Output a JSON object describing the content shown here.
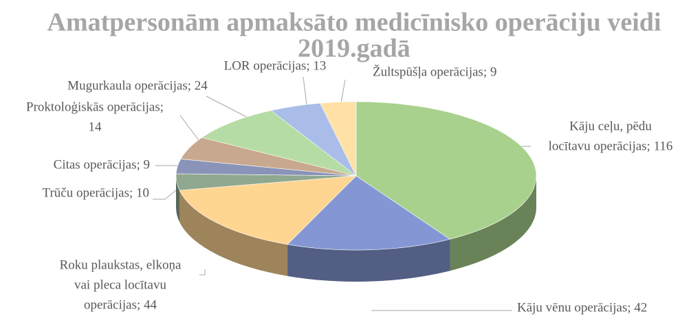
{
  "chart_data": {
    "type": "pie3d",
    "title": [
      "Amatpersonām apmaksāto medicīnisko operāciju veidi",
      "2019.gadā"
    ],
    "labels": [
      [
        "Kāju ceļu, pēdu",
        "locītavu operācijas; 116"
      ],
      [
        "Kāju vēnu operācijas; 42"
      ],
      [
        "Roku plaukstas, elkoņa",
        "vai pleca locītavu",
        "operācijas; 44"
      ],
      [
        "Trūču operācijas; 10"
      ],
      [
        "Citas operācijas; 9"
      ],
      [
        "Proktoloģiskās operācijas;",
        "14"
      ],
      [
        "Mugurkaula operācijas; 24"
      ],
      [
        "LOR operācijas; 13"
      ],
      [
        "Žultspūšļa operācijas; 9"
      ]
    ],
    "values": [
      116,
      42,
      44,
      10,
      9,
      14,
      24,
      13,
      9
    ],
    "colors": [
      "#a9d18e",
      "#8497d4",
      "#ffd592",
      "#8fa88f",
      "#8a93b8",
      "#c8a98f",
      "#b6dca5",
      "#a9bde8",
      "#ffe1a6"
    ]
  }
}
